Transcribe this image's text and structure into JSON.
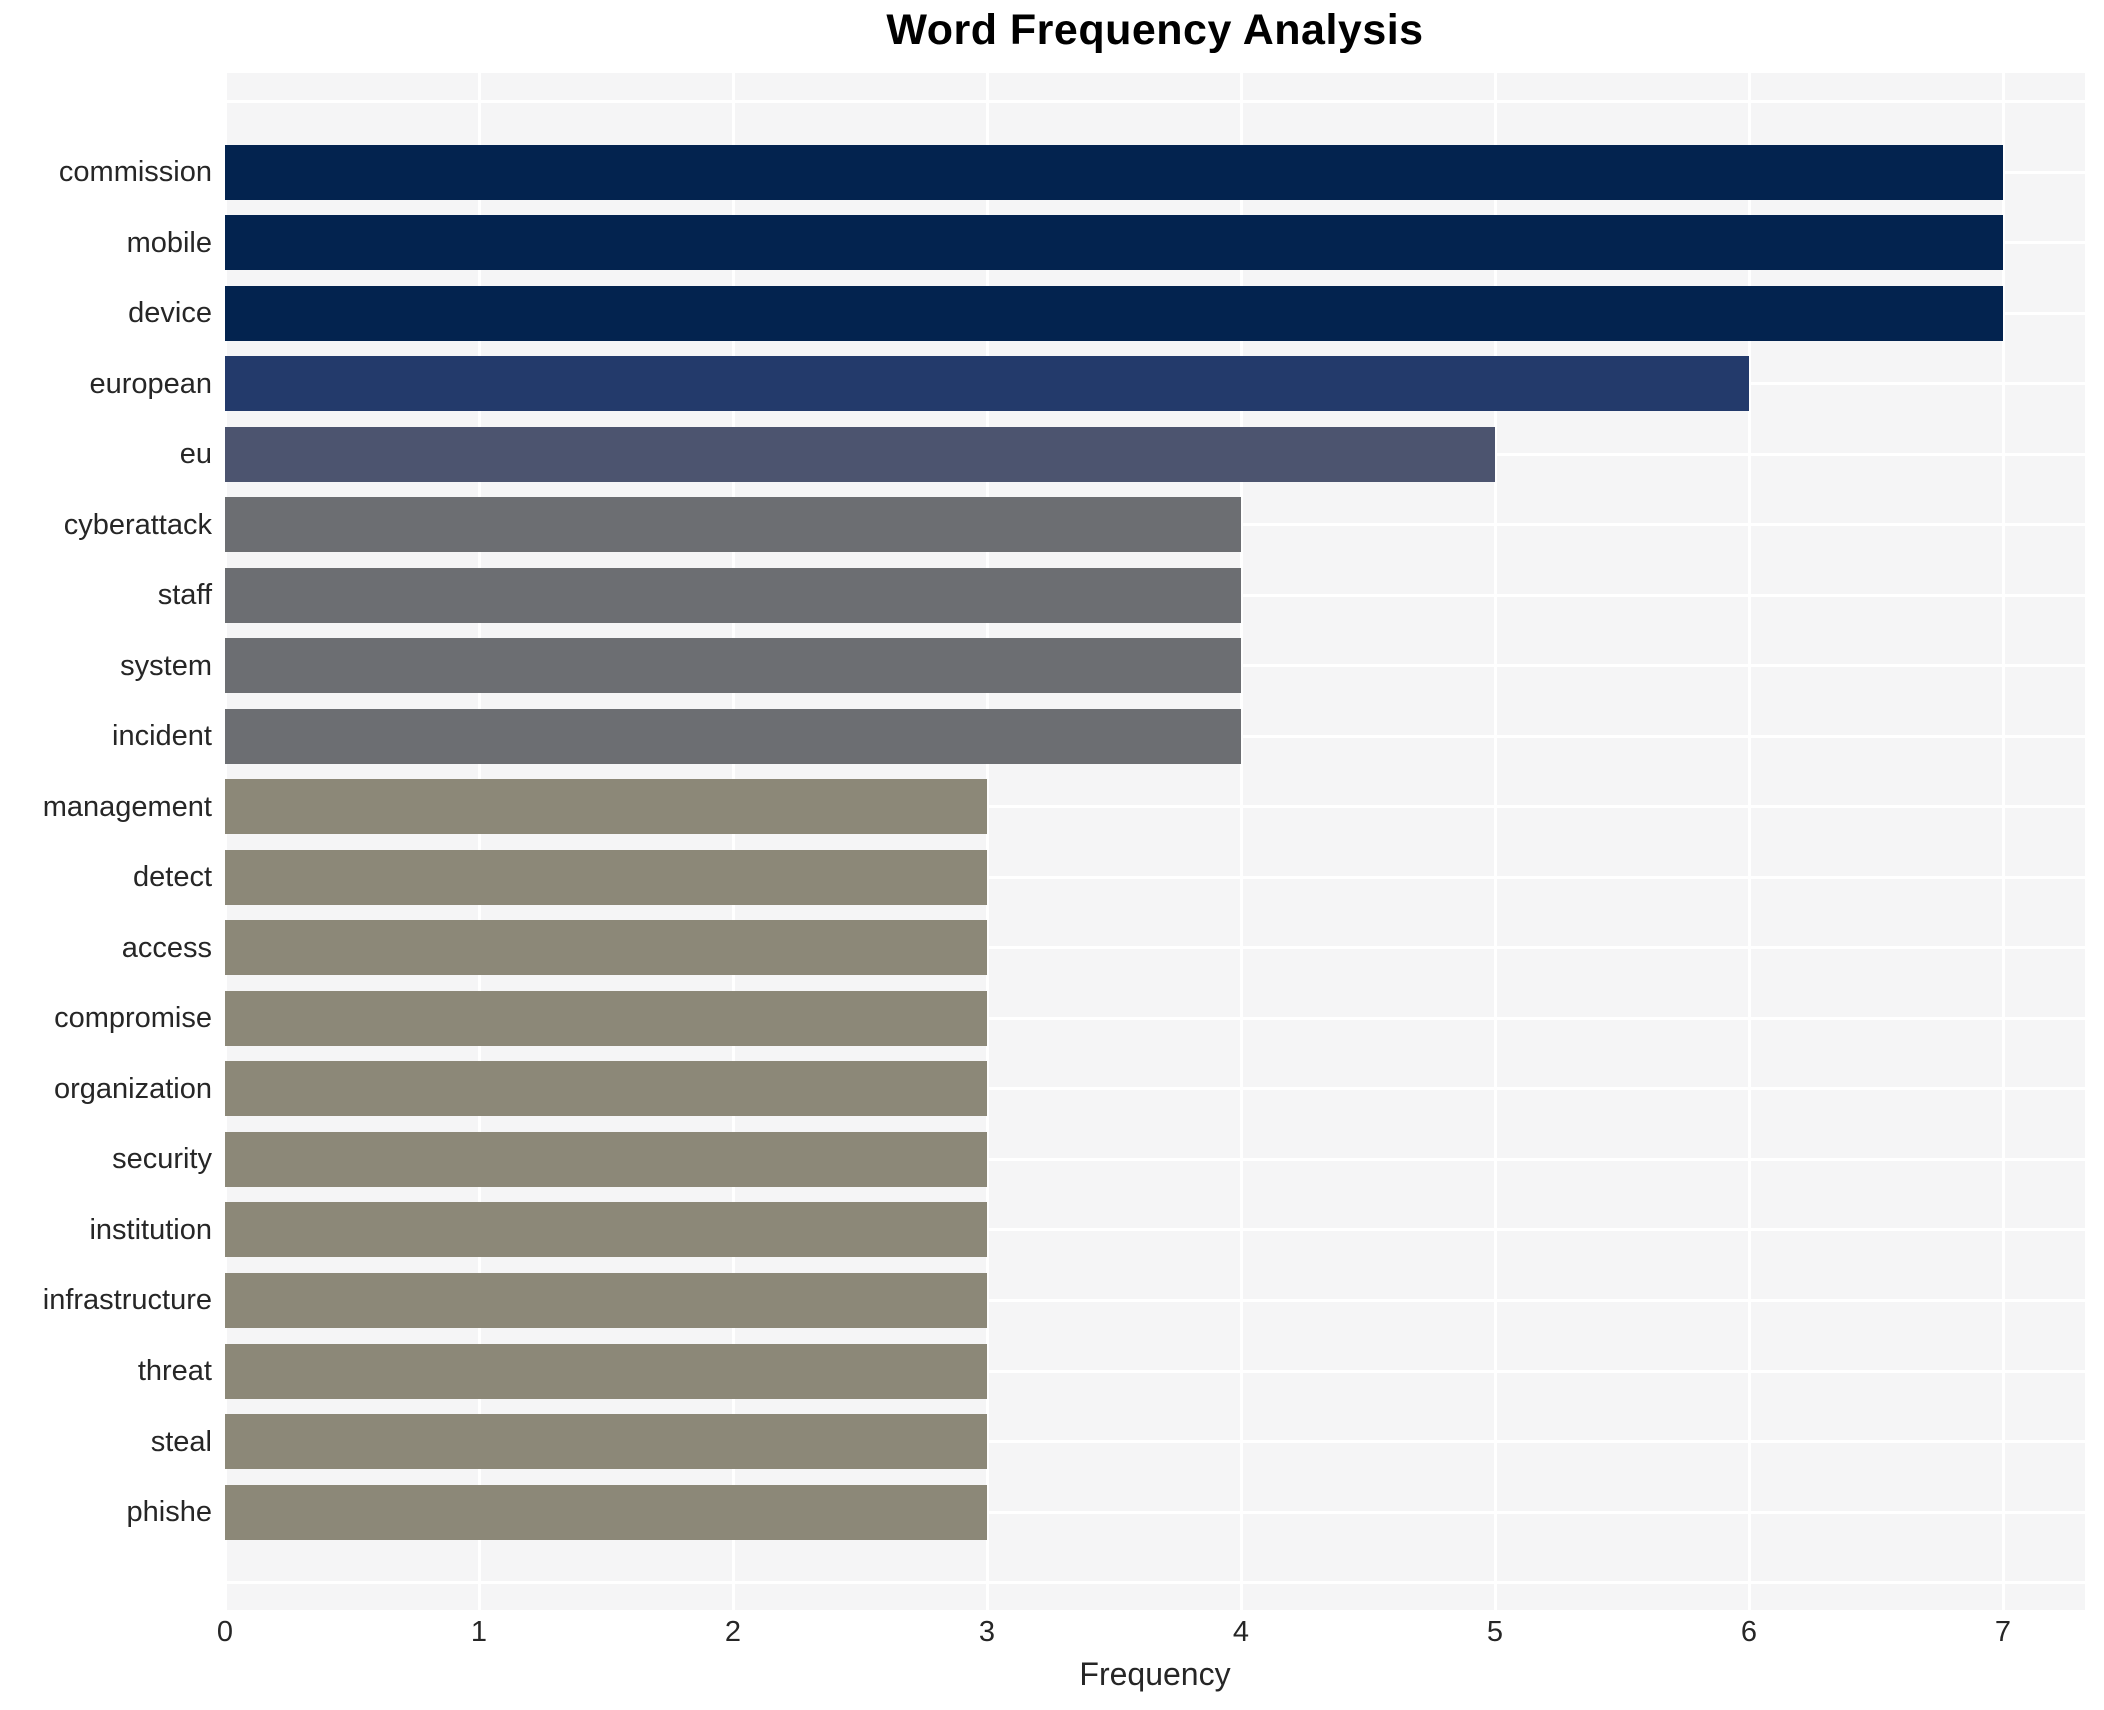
{
  "title": "Word Frequency Analysis",
  "chart_data": {
    "type": "bar",
    "orientation": "horizontal",
    "title": "Word Frequency Analysis",
    "xlabel": "Frequency",
    "ylabel": "",
    "categories": [
      "commission",
      "mobile",
      "device",
      "european",
      "eu",
      "cyberattack",
      "staff",
      "system",
      "incident",
      "management",
      "detect",
      "access",
      "compromise",
      "organization",
      "security",
      "institution",
      "infrastructure",
      "threat",
      "steal",
      "phishe"
    ],
    "values": [
      7,
      7,
      7,
      6,
      5,
      4,
      4,
      4,
      4,
      3,
      3,
      3,
      3,
      3,
      3,
      3,
      3,
      3,
      3,
      3
    ],
    "xticks": [
      0,
      1,
      2,
      3,
      4,
      5,
      6,
      7
    ],
    "xlim": [
      0,
      7.32
    ],
    "grid": true,
    "legend": false,
    "colors": {
      "value_to_color": {
        "7": "#03234f",
        "6": "#233a6b",
        "5": "#4c546f",
        "4": "#6c6e72",
        "3": "#8c8878"
      },
      "plot_background": "#f5f5f6",
      "figure_background": "#ffffff",
      "gridline": "#ffffff",
      "tick_text": "#262626",
      "title_text": "#000000"
    }
  }
}
